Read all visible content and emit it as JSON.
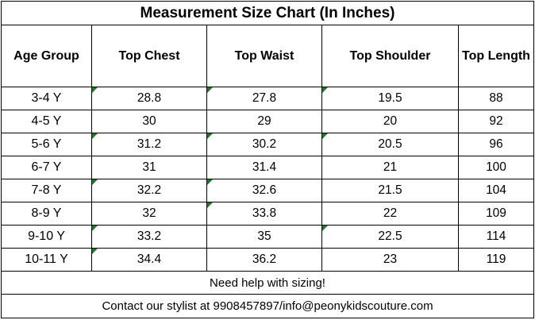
{
  "title": "Measurement Size Chart  (In Inches)",
  "headers": [
    "Age Group",
    "Top  Chest",
    "Top Waist",
    "Top Shoulder",
    "Top Length"
  ],
  "rows": [
    {
      "age": "3-4 Y",
      "chest": "28.8",
      "waist": "27.8",
      "shoulder": "19.5",
      "length": "88"
    },
    {
      "age": "4-5 Y",
      "chest": "30",
      "waist": "29",
      "shoulder": "20",
      "length": "92"
    },
    {
      "age": "5-6 Y",
      "chest": "31.2",
      "waist": "30.2",
      "shoulder": "20.5",
      "length": "96"
    },
    {
      "age": "6-7 Y",
      "chest": "31",
      "waist": "31.4",
      "shoulder": "21",
      "length": "100"
    },
    {
      "age": "7-8 Y",
      "chest": "32.2",
      "waist": "32.6",
      "shoulder": "21.5",
      "length": "104"
    },
    {
      "age": "8-9 Y",
      "chest": "32",
      "waist": "33.8",
      "shoulder": "22",
      "length": "109"
    },
    {
      "age": "9-10 Y",
      "chest": "33.2",
      "waist": "35",
      "shoulder": "22.5",
      "length": "114"
    },
    {
      "age": "10-11 Y",
      "chest": "34.4",
      "waist": "36.2",
      "shoulder": "23",
      "length": "119"
    }
  ],
  "help_text": "Need help with sizing!",
  "contact_text": "Contact our stylist at 9908457897/info@peonykidscouture.com",
  "colors": {
    "border": "#000000",
    "error_flag": "#1e7a1e",
    "background": "#ffffff"
  }
}
